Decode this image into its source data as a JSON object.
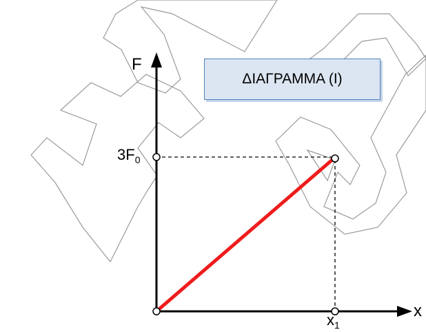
{
  "diagram": {
    "title": "ΔΙΑΓΡΑΜΜΑ (Ι)",
    "y_axis_label": "F",
    "x_axis_label": "x",
    "y_tick": {
      "main": "3F",
      "sub": "0"
    },
    "x_tick": {
      "main": "x",
      "sub": "1"
    },
    "line_color": "#ee1c1c",
    "watermark_color": "#9a9a9a"
  },
  "chart_data": {
    "type": "line",
    "series": [
      {
        "x": [
          0,
          1
        ],
        "y": [
          0,
          3
        ],
        "color": "#ee1c1c"
      }
    ],
    "x_tick_labels": [
      "x1"
    ],
    "y_tick_labels": [
      "3F0"
    ],
    "xlabel": "x",
    "ylabel": "F",
    "title": "ΔΙΑΓΡΑΜΜΑ (Ι)",
    "grid": false
  }
}
